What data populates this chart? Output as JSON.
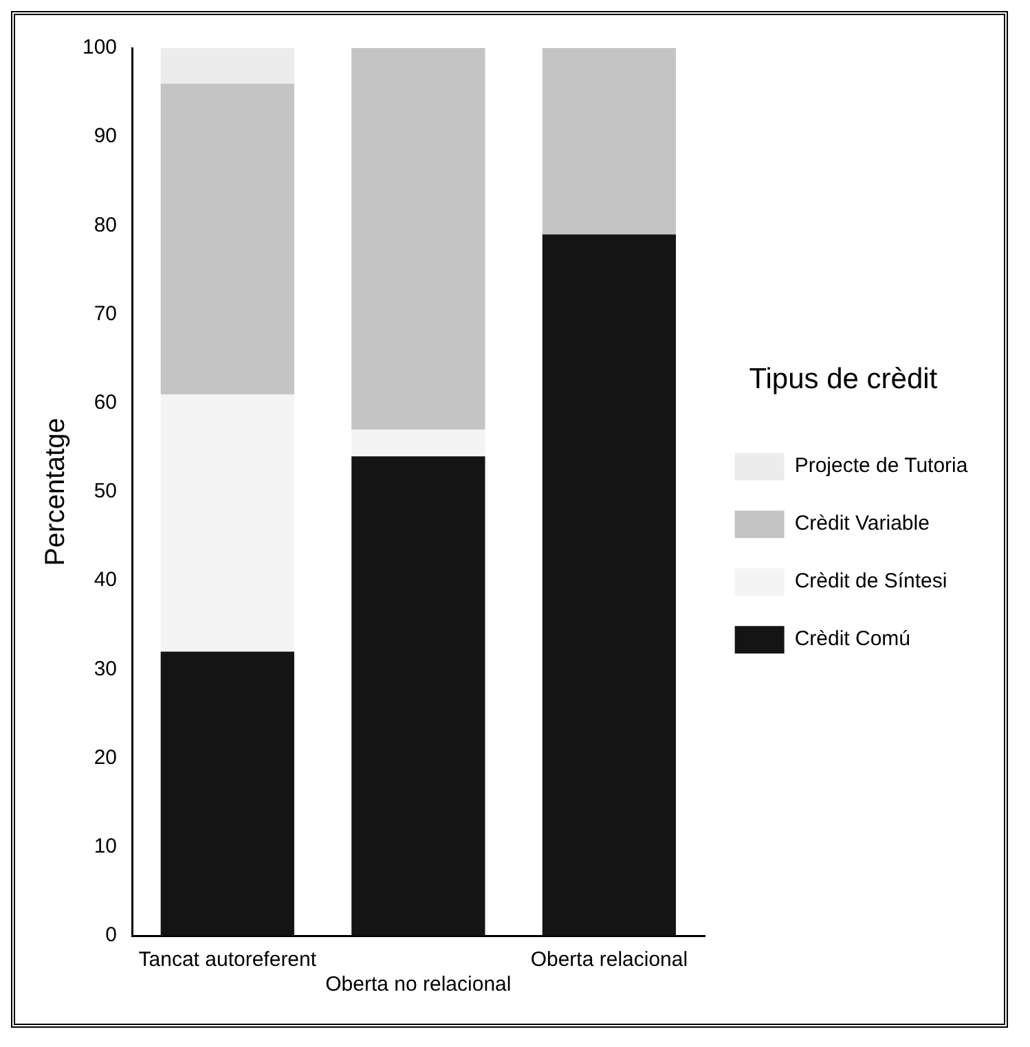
{
  "chart_data": {
    "type": "bar",
    "stacked": true,
    "ylabel": "Percentatge",
    "legend_title": "Tipus de crèdit",
    "legend": "right",
    "grid": false,
    "categories": [
      "Tancat autoreferent",
      "Oberta no relacional",
      "Oberta relacional"
    ],
    "ylim": [
      0,
      100
    ],
    "yticks": [
      0,
      10,
      20,
      30,
      40,
      50,
      60,
      70,
      80,
      90,
      100
    ],
    "series": [
      {
        "name": "Crèdit Comú",
        "color": "#141414",
        "values": [
          32,
          54,
          79
        ]
      },
      {
        "name": "Crèdit de Síntesi",
        "color": "#f4f4f4",
        "values": [
          29,
          3,
          0
        ]
      },
      {
        "name": "Crèdit Variable",
        "color": "#c4c4c4",
        "values": [
          35,
          43,
          21
        ]
      },
      {
        "name": "Projecte de Tutoria",
        "color": "#ececec",
        "values": [
          4,
          0,
          0
        ]
      }
    ]
  }
}
